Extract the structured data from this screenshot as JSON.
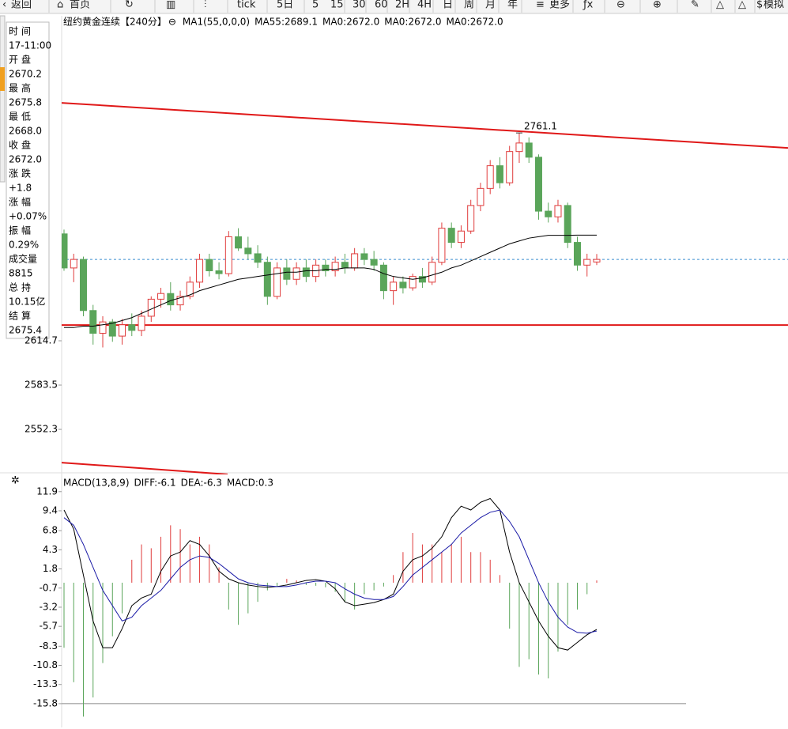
{
  "toolbar": [
    "返回",
    "首页",
    "tick",
    "5日",
    "5",
    "15",
    "30",
    "60",
    "2H",
    "4H",
    "日",
    "周",
    "月",
    "年",
    "更多",
    "模拟"
  ],
  "info": [
    {
      "label": "时间",
      "value": "17-11:00",
      "color": "#000"
    },
    {
      "label": "开盘",
      "value": "2670.2",
      "color": "#000"
    },
    {
      "label": "最高",
      "value": "2675.8",
      "color": "#d42020"
    },
    {
      "label": "最低",
      "value": "2668.0",
      "color": "#0a8a0a"
    },
    {
      "label": "收盘",
      "value": "2672.0",
      "color": "#d42020"
    },
    {
      "label": "涨跌",
      "value": "+1.8",
      "color": "#d42020"
    },
    {
      "label": "涨幅",
      "value": "+0.07%",
      "color": "#d42020"
    },
    {
      "label": "振幅",
      "value": "0.29%",
      "color": "#000"
    },
    {
      "label": "成交量",
      "value": "8815",
      "color": "#000"
    },
    {
      "label": "总持",
      "value": "10.15亿",
      "color": "#000"
    },
    {
      "label": "结算",
      "value": "2675.4",
      "color": "#000"
    }
  ],
  "chart_data": [
    {
      "type": "candlestick",
      "title": "纽约黄金连续",
      "period": "【240分】",
      "indicators": [
        {
          "text": "MA1(55,0,0,0)",
          "color": "#000000"
        },
        {
          "text": "MA55:2689.1",
          "color": "#000000"
        },
        {
          "text": "MA0:2672.0",
          "color": "#1a1aa6"
        },
        {
          "text": "MA0:2672.0",
          "color": "#e020e0"
        },
        {
          "text": "MA0:2672.0",
          "color": "#f08a00"
        }
      ],
      "up_color": "#e03c3c",
      "down_color": "#5aa55a",
      "candles": [
        [
          2690,
          2693,
          2664,
          2666
        ],
        [
          2666,
          2676,
          2656,
          2672
        ],
        [
          2672,
          2674,
          2632,
          2636
        ],
        [
          2636,
          2640,
          2612,
          2620
        ],
        [
          2620,
          2632,
          2610,
          2628
        ],
        [
          2628,
          2630,
          2614,
          2618
        ],
        [
          2618,
          2630,
          2612,
          2626
        ],
        [
          2626,
          2634,
          2618,
          2622
        ],
        [
          2622,
          2636,
          2618,
          2632
        ],
        [
          2632,
          2646,
          2628,
          2644
        ],
        [
          2644,
          2652,
          2638,
          2648
        ],
        [
          2648,
          2656,
          2636,
          2640
        ],
        [
          2640,
          2650,
          2636,
          2646
        ],
        [
          2646,
          2660,
          2644,
          2656
        ],
        [
          2656,
          2676,
          2652,
          2672
        ],
        [
          2672,
          2676,
          2660,
          2664
        ],
        [
          2664,
          2670,
          2658,
          2662
        ],
        [
          2662,
          2692,
          2660,
          2688
        ],
        [
          2688,
          2694,
          2678,
          2680
        ],
        [
          2680,
          2688,
          2672,
          2676
        ],
        [
          2676,
          2682,
          2666,
          2670
        ],
        [
          2670,
          2674,
          2640,
          2646
        ],
        [
          2646,
          2670,
          2644,
          2666
        ],
        [
          2666,
          2672,
          2654,
          2658
        ],
        [
          2658,
          2670,
          2654,
          2666
        ],
        [
          2666,
          2672,
          2656,
          2660
        ],
        [
          2660,
          2672,
          2656,
          2668
        ],
        [
          2668,
          2672,
          2660,
          2664
        ],
        [
          2664,
          2674,
          2660,
          2670
        ],
        [
          2670,
          2676,
          2662,
          2666
        ],
        [
          2666,
          2680,
          2664,
          2676
        ],
        [
          2676,
          2680,
          2668,
          2672
        ],
        [
          2672,
          2678,
          2664,
          2668
        ],
        [
          2668,
          2670,
          2644,
          2650
        ],
        [
          2650,
          2660,
          2640,
          2656
        ],
        [
          2656,
          2660,
          2648,
          2652
        ],
        [
          2652,
          2662,
          2650,
          2660
        ],
        [
          2660,
          2666,
          2652,
          2656
        ],
        [
          2656,
          2674,
          2654,
          2670
        ],
        [
          2670,
          2698,
          2668,
          2694
        ],
        [
          2694,
          2698,
          2680,
          2684
        ],
        [
          2684,
          2696,
          2680,
          2692
        ],
        [
          2692,
          2714,
          2690,
          2710
        ],
        [
          2710,
          2726,
          2706,
          2722
        ],
        [
          2722,
          2742,
          2718,
          2738
        ],
        [
          2738,
          2744,
          2722,
          2726
        ],
        [
          2726,
          2752,
          2724,
          2748
        ],
        [
          2748,
          2761.1,
          2740,
          2754
        ],
        [
          2754,
          2758,
          2740,
          2744
        ],
        [
          2744,
          2746,
          2700,
          2706
        ],
        [
          2706,
          2712,
          2698,
          2702
        ],
        [
          2702,
          2714,
          2698,
          2710
        ],
        [
          2710,
          2712,
          2680,
          2684
        ],
        [
          2684,
          2688,
          2664,
          2668
        ],
        [
          2668,
          2676,
          2660,
          2672
        ],
        [
          2670.2,
          2675.8,
          2668.0,
          2672.0
        ]
      ],
      "ma": {
        "color": "#000000",
        "values": [
          2624,
          2624,
          2625,
          2625,
          2626,
          2627,
          2629,
          2631,
          2634,
          2637,
          2640,
          2643,
          2645,
          2647,
          2650,
          2652,
          2654,
          2656,
          2658,
          2659,
          2660,
          2661,
          2662,
          2663,
          2663,
          2664,
          2664,
          2665,
          2665,
          2666,
          2666,
          2666,
          2665,
          2662,
          2660,
          2659,
          2658,
          2659,
          2661,
          2663,
          2666,
          2668,
          2671,
          2674,
          2677,
          2680,
          2683,
          2685,
          2687,
          2688,
          2689,
          2689,
          2689,
          2689.1,
          2689.1,
          2689.1
        ]
      },
      "annotation": "2761.1",
      "annotation_index": 47,
      "h_line": 2625.8,
      "last_price": 2672.0,
      "line_color": "#e01818",
      "trend_lines": [
        [
          2782.3,
          2750.5
        ],
        [
          2528.9,
          2520.6
        ]
      ],
      "ylim": [
        2521.7,
        2843.6
      ],
      "yticks": [
        2614.7,
        2583.5,
        2552.3
      ]
    },
    {
      "type": "macd",
      "title": "MACD(13,8,9)",
      "series": [
        {
          "name": "DIFF:-6.1",
          "color": "#000000",
          "values": [
            9.5,
            7,
            1,
            -5,
            -8.5,
            -8.5,
            -6,
            -3,
            -2,
            -1.5,
            1.5,
            3.5,
            4,
            5.5,
            5,
            3.5,
            1.5,
            0.5,
            0,
            -0.3,
            -0.5,
            -0.6,
            -0.5,
            -0.3,
            0,
            0.3,
            0.4,
            0.2,
            -0.8,
            -2.5,
            -3,
            -2.8,
            -2.6,
            -2.2,
            -1.5,
            1.5,
            3,
            3.5,
            4.5,
            6,
            8.5,
            10,
            9.5,
            10.5,
            11,
            9.5,
            4,
            0,
            -2.5,
            -5,
            -7,
            -8.5,
            -8.8,
            -7.8,
            -6.8,
            -6.1
          ]
        },
        {
          "name": "DEA:-6.3",
          "color": "#1a1aa6",
          "values": [
            8.5,
            7.5,
            5,
            2,
            -1,
            -3,
            -5,
            -4.5,
            -3,
            -2,
            -1,
            0.5,
            2,
            3,
            3.5,
            3.3,
            2.5,
            1.5,
            0.5,
            0,
            -0.3,
            -0.4,
            -0.5,
            -0.5,
            -0.3,
            0,
            0.2,
            0.2,
            0,
            -0.8,
            -1.5,
            -2,
            -2.2,
            -2.2,
            -1.8,
            -0.5,
            1,
            2,
            3,
            4,
            5,
            6.5,
            7.5,
            8.5,
            9.2,
            9.5,
            8,
            6,
            3,
            0,
            -2.5,
            -4.5,
            -5.8,
            -6.5,
            -6.6,
            -6.3
          ]
        }
      ],
      "histogram": {
        "name": "MACD:0.3",
        "color": "#e020e0",
        "up_color": "#e03c3c",
        "down_color": "#5aa55a",
        "values": [
          -8.5,
          -13,
          -17.5,
          -15,
          -10.5,
          -7,
          -4,
          3,
          5,
          4.5,
          6,
          7.5,
          7,
          5,
          6,
          5,
          2,
          -3.5,
          -5.5,
          -4,
          -2.5,
          -1,
          -0.5,
          0.5,
          0.3,
          -0.3,
          -0.4,
          -0.6,
          -1.2,
          -2.5,
          -3.5,
          -1.5,
          -1,
          -0.5,
          1,
          4,
          6.5,
          5,
          5,
          4,
          5,
          6,
          4,
          4,
          3,
          1,
          -6,
          -11,
          -10,
          -12,
          -12.5,
          -9,
          -5.5,
          -3.5,
          -1.5,
          0.3
        ]
      },
      "ylim": [
        -18.7,
        12.6
      ],
      "yticks": [
        11.9,
        9.4,
        6.8,
        4.3,
        1.8,
        -0.7,
        -3.2,
        -5.7,
        -8.3,
        -10.8,
        -13.3,
        -15.8
      ]
    }
  ]
}
